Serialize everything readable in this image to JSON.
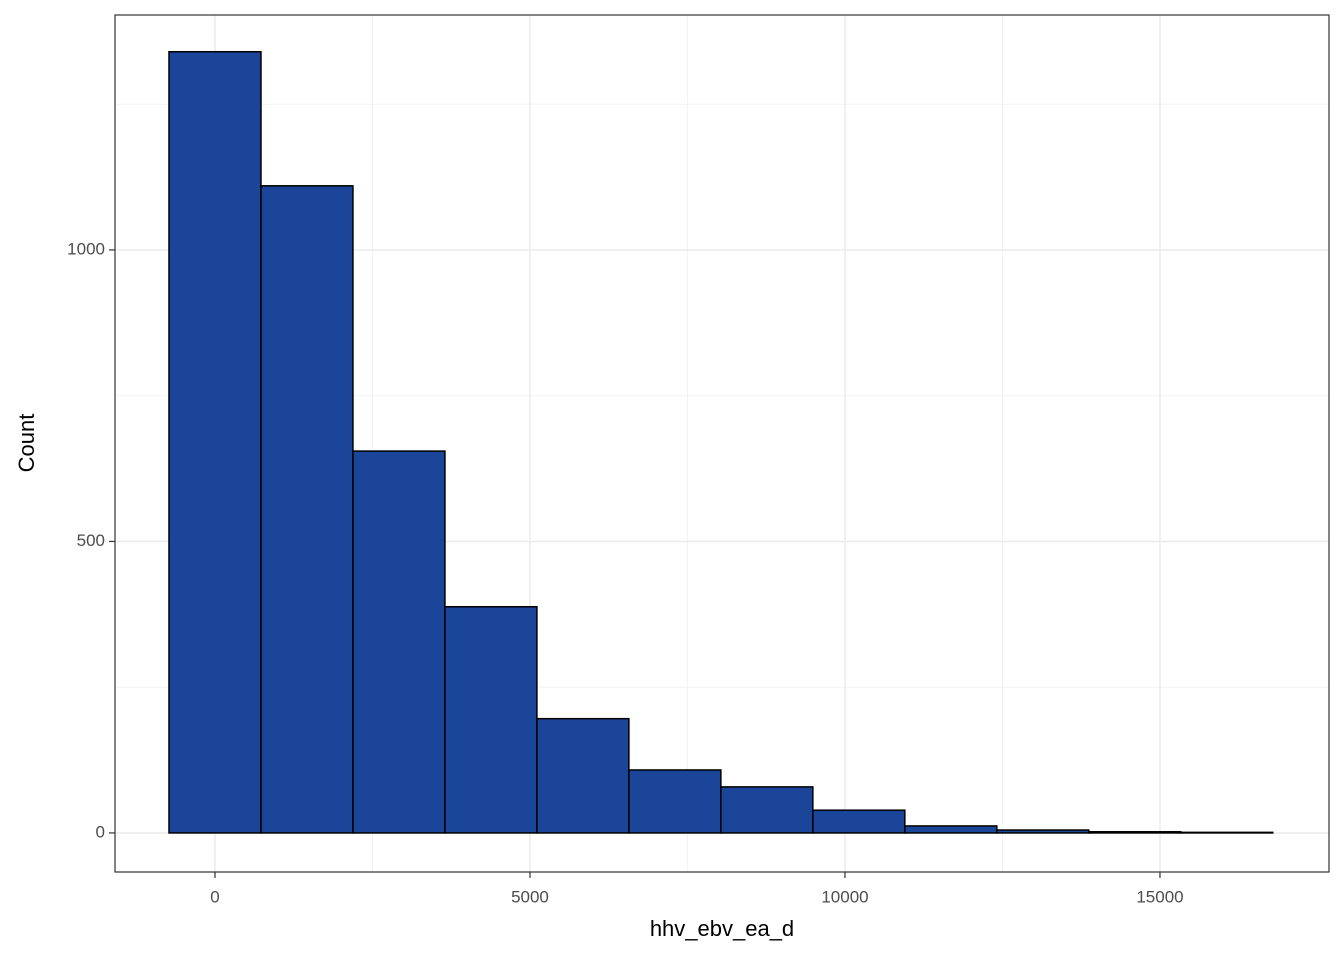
{
  "chart_data": {
    "type": "histogram",
    "xlabel": "hhv_ebv_ea_d",
    "ylabel": "Count",
    "bins": [
      -730,
      730,
      2190,
      3650,
      5110,
      6570,
      8030,
      9490,
      10950,
      12410,
      13870,
      15330,
      16790
    ],
    "values": [
      1340,
      1110,
      655,
      388,
      196,
      108,
      79,
      39,
      12,
      5,
      2,
      1
    ],
    "color": "#1a4599",
    "edgecolor": "#000000",
    "xlim": [
      -1587,
      17683
    ],
    "ylim": [
      -67,
      1403
    ],
    "xticks": [
      0,
      5000,
      10000,
      15000
    ],
    "yticks": [
      0,
      500,
      1000
    ],
    "xminor": [
      2500,
      7500,
      12500
    ],
    "yminor": [
      250,
      750,
      1250
    ],
    "grid": true
  }
}
